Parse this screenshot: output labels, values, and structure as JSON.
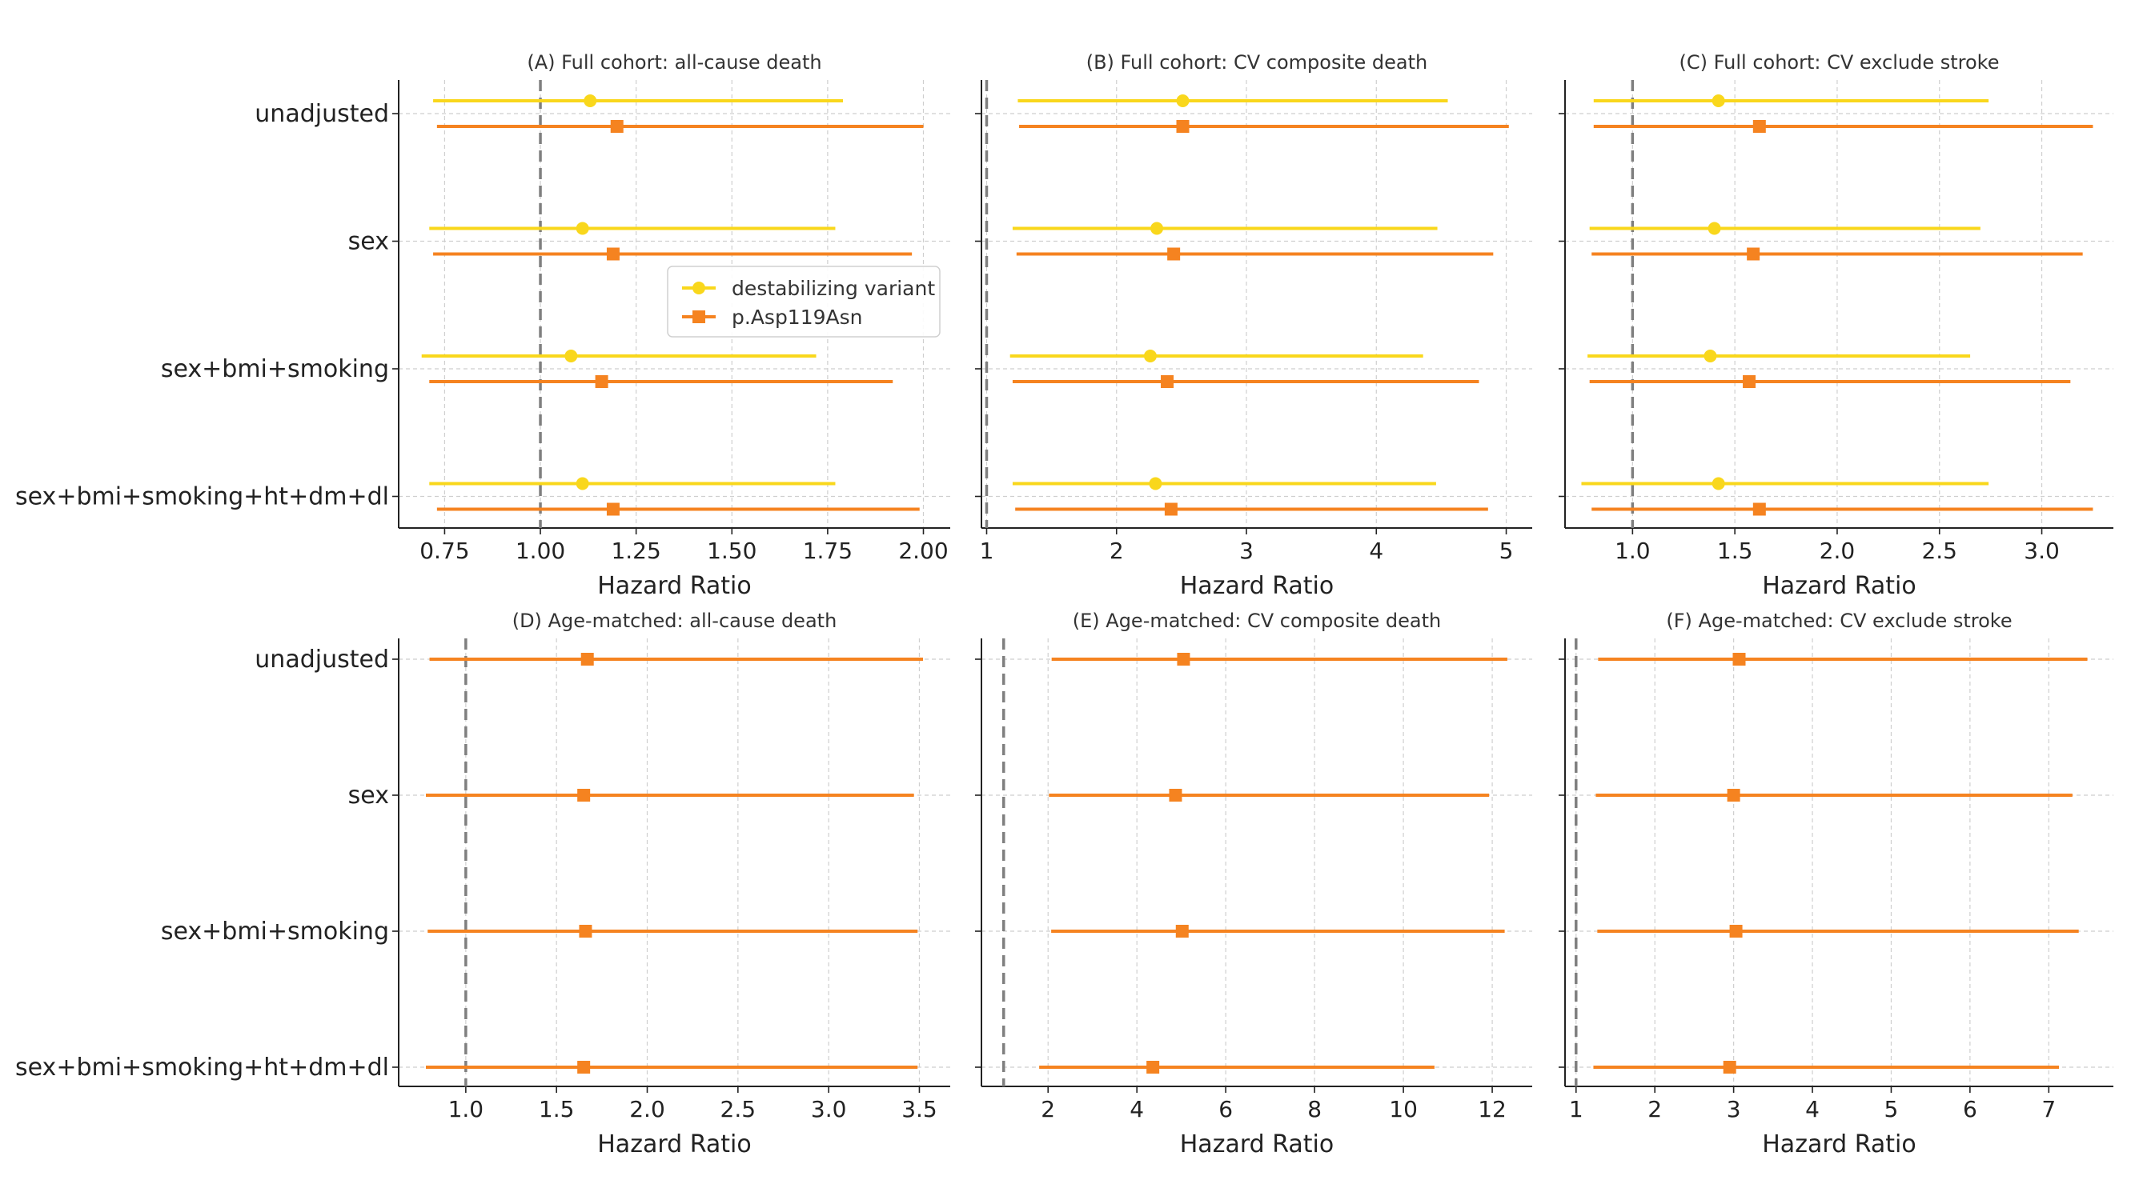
{
  "figure": {
    "categories": [
      "unadjusted",
      "sex",
      "sex+bmi+smoking",
      "sex+bmi+smoking+ht+dm+dl"
    ],
    "series_colors": {
      "destabilizing variant": "#F9D71C",
      "p.Asp119Asn": "#F58320"
    },
    "reference_line_color": "#7f7f7f",
    "legend": {
      "placement": "inside panel A, center-right",
      "entries": [
        "destabilizing variant",
        "p.Asp119Asn"
      ]
    }
  },
  "chart_data": [
    {
      "type": "forest",
      "title": "(A) Full cohort: all-cause death",
      "xlabel": "Hazard Ratio",
      "xlim": [
        0.63,
        2.07
      ],
      "xticks": [
        0.75,
        1.0,
        1.25,
        1.5,
        1.75,
        2.0
      ],
      "xtick_labels": [
        "0.75",
        "1.00",
        "1.25",
        "1.50",
        "1.75",
        "2.00"
      ],
      "reference": 1.0,
      "categories": [
        "unadjusted",
        "sex",
        "sex+bmi+smoking",
        "sex+bmi+smoking+ht+dm+dl"
      ],
      "series": [
        {
          "name": "destabilizing variant",
          "marker": "circle",
          "hr": [
            1.13,
            1.11,
            1.08,
            1.11
          ],
          "lo": [
            0.72,
            0.71,
            0.69,
            0.71
          ],
          "hi": [
            1.79,
            1.77,
            1.72,
            1.77
          ]
        },
        {
          "name": "p.Asp119Asn",
          "marker": "square",
          "hr": [
            1.2,
            1.19,
            1.16,
            1.19
          ],
          "lo": [
            0.73,
            0.72,
            0.71,
            0.73
          ],
          "hi": [
            2.0,
            1.97,
            1.92,
            1.99
          ]
        }
      ]
    },
    {
      "type": "forest",
      "title": "(B) Full cohort: CV composite death",
      "xlabel": "Hazard Ratio",
      "xlim": [
        0.96,
        5.2
      ],
      "xticks": [
        1,
        2,
        3,
        4,
        5
      ],
      "xtick_labels": [
        "1",
        "2",
        "3",
        "4",
        "5"
      ],
      "reference": 1.0,
      "categories": [
        "unadjusted",
        "sex",
        "sex+bmi+smoking",
        "sex+bmi+smoking+ht+dm+dl"
      ],
      "series": [
        {
          "name": "destabilizing variant",
          "marker": "circle",
          "hr": [
            2.51,
            2.31,
            2.26,
            2.3
          ],
          "lo": [
            1.24,
            1.2,
            1.18,
            1.2
          ],
          "hi": [
            4.55,
            4.47,
            4.36,
            4.46
          ]
        },
        {
          "name": "p.Asp119Asn",
          "marker": "square",
          "hr": [
            2.51,
            2.44,
            2.39,
            2.42
          ],
          "lo": [
            1.25,
            1.23,
            1.2,
            1.22
          ],
          "hi": [
            5.02,
            4.9,
            4.79,
            4.86
          ]
        }
      ]
    },
    {
      "type": "forest",
      "title": "(C) Full cohort: CV exclude stroke",
      "xlabel": "Hazard Ratio",
      "xlim": [
        0.67,
        3.35
      ],
      "xticks": [
        1.0,
        1.5,
        2.0,
        2.5,
        3.0
      ],
      "xtick_labels": [
        "1.0",
        "1.5",
        "2.0",
        "2.5",
        "3.0"
      ],
      "reference": 1.0,
      "categories": [
        "unadjusted",
        "sex",
        "sex+bmi+smoking",
        "sex+bmi+smoking+ht+dm+dl"
      ],
      "series": [
        {
          "name": "destabilizing variant",
          "marker": "circle",
          "hr": [
            1.42,
            1.4,
            1.38,
            1.42
          ],
          "lo": [
            0.81,
            0.79,
            0.78,
            0.75
          ],
          "hi": [
            2.74,
            2.7,
            2.65,
            2.74
          ]
        },
        {
          "name": "p.Asp119Asn",
          "marker": "square",
          "hr": [
            1.62,
            1.59,
            1.57,
            1.62
          ],
          "lo": [
            0.81,
            0.8,
            0.79,
            0.8
          ],
          "hi": [
            3.25,
            3.2,
            3.14,
            3.25
          ]
        }
      ]
    },
    {
      "type": "forest",
      "title": "(D) Age-matched: all-cause death",
      "xlabel": "Hazard Ratio",
      "xlim": [
        0.63,
        3.67
      ],
      "xticks": [
        1.0,
        1.5,
        2.0,
        2.5,
        3.0,
        3.5
      ],
      "xtick_labels": [
        "1.0",
        "1.5",
        "2.0",
        "2.5",
        "3.0",
        "3.5"
      ],
      "reference": 1.0,
      "categories": [
        "unadjusted",
        "sex",
        "sex+bmi+smoking",
        "sex+bmi+smoking+ht+dm+dl"
      ],
      "series": [
        {
          "name": "p.Asp119Asn",
          "marker": "square",
          "hr": [
            1.67,
            1.65,
            1.66,
            1.65
          ],
          "lo": [
            0.8,
            0.78,
            0.79,
            0.78
          ],
          "hi": [
            3.52,
            3.47,
            3.49,
            3.49
          ]
        }
      ]
    },
    {
      "type": "forest",
      "title": "(E) Age-matched: CV composite death",
      "xlabel": "Hazard Ratio",
      "xlim": [
        0.5,
        12.9
      ],
      "xticks": [
        2,
        4,
        6,
        8,
        10,
        12
      ],
      "xtick_labels": [
        "2",
        "4",
        "6",
        "8",
        "10",
        "12"
      ],
      "reference": 1.0,
      "categories": [
        "unadjusted",
        "sex",
        "sex+bmi+smoking",
        "sex+bmi+smoking+ht+dm+dl"
      ],
      "series": [
        {
          "name": "p.Asp119Asn",
          "marker": "square",
          "hr": [
            5.05,
            4.87,
            5.02,
            4.36
          ],
          "lo": [
            2.08,
            2.02,
            2.07,
            1.8
          ],
          "hi": [
            12.34,
            11.93,
            12.28,
            10.7
          ]
        }
      ]
    },
    {
      "type": "forest",
      "title": "(F) Age-matched: CV exclude stroke",
      "xlabel": "Hazard Ratio",
      "xlim": [
        0.86,
        7.82
      ],
      "xticks": [
        1,
        2,
        3,
        4,
        5,
        6,
        7
      ],
      "xtick_labels": [
        "1",
        "2",
        "3",
        "4",
        "5",
        "6",
        "7"
      ],
      "reference": 1.0,
      "categories": [
        "unadjusted",
        "sex",
        "sex+bmi+smoking",
        "sex+bmi+smoking+ht+dm+dl"
      ],
      "series": [
        {
          "name": "p.Asp119Asn",
          "marker": "square",
          "hr": [
            3.07,
            3.0,
            3.03,
            2.95
          ],
          "lo": [
            1.28,
            1.25,
            1.27,
            1.22
          ],
          "hi": [
            7.49,
            7.3,
            7.38,
            7.13
          ]
        }
      ]
    }
  ]
}
